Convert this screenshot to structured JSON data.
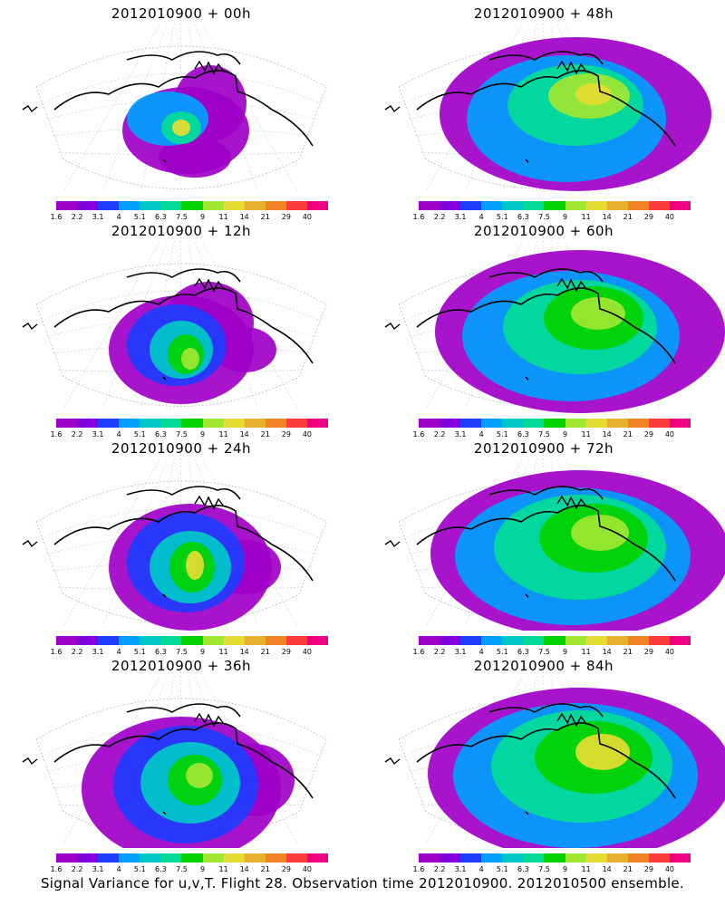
{
  "panels": [
    {
      "title": "2012010900  + 00h",
      "hour": 0
    },
    {
      "title": "2012010900  + 48h",
      "hour": 48
    },
    {
      "title": "2012010900  + 12h",
      "hour": 12
    },
    {
      "title": "2012010900  + 60h",
      "hour": 60
    },
    {
      "title": "2012010900  + 24h",
      "hour": 24
    },
    {
      "title": "2012010900  + 72h",
      "hour": 72
    },
    {
      "title": "2012010900  + 36h",
      "hour": 36
    },
    {
      "title": "2012010900  + 84h",
      "hour": 84
    }
  ],
  "colorbar": {
    "labels": [
      "1.6",
      "2.2",
      "3.1",
      "4",
      "5.1",
      "6.3",
      "7.5",
      "9",
      "11",
      "14",
      "21",
      "29",
      "40"
    ],
    "colors": [
      "#a000c8",
      "#8200dc",
      "#1e3cff",
      "#00a0ff",
      "#00c8c8",
      "#00dc96",
      "#00d200",
      "#a0e632",
      "#e6dc32",
      "#e6af2d",
      "#f08228",
      "#fa3c3c",
      "#f00082"
    ]
  },
  "caption": "Signal Variance for u,v,T. Flight 28. Observation time 2012010900. 2012010500 ensemble."
}
